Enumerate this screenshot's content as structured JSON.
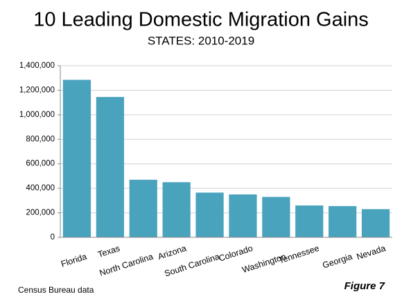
{
  "chart_data": {
    "type": "bar",
    "title": "10 Leading Domestic Migration Gains",
    "subtitle": "STATES: 2010-2019",
    "categories": [
      "Florida",
      "Texas",
      "North Carolina",
      "Arizona",
      "South Carolina",
      "Colorado",
      "Washington",
      "Tennessee",
      "Georgia",
      "Nevada"
    ],
    "values": [
      1285000,
      1145000,
      470000,
      450000,
      365000,
      350000,
      330000,
      260000,
      255000,
      230000
    ],
    "color": "#4aa3bd",
    "ylim": [
      0,
      1400000
    ],
    "yticks": [
      0,
      {
        "value": 200000,
        "label": "200,000"
      },
      {
        "value": 400000,
        "label": "400,000"
      },
      {
        "value": 600000,
        "label": "600,000"
      },
      {
        "value": 800000,
        "label": "800,000"
      },
      {
        "value": 1000000,
        "label": "1,000,000"
      },
      {
        "value": 1200000,
        "label": "1,200,000"
      },
      {
        "value": 1400000,
        "label": "1,400,000"
      }
    ],
    "grid": true,
    "source": "Census Bureau data",
    "figure_label": "Figure 7"
  }
}
